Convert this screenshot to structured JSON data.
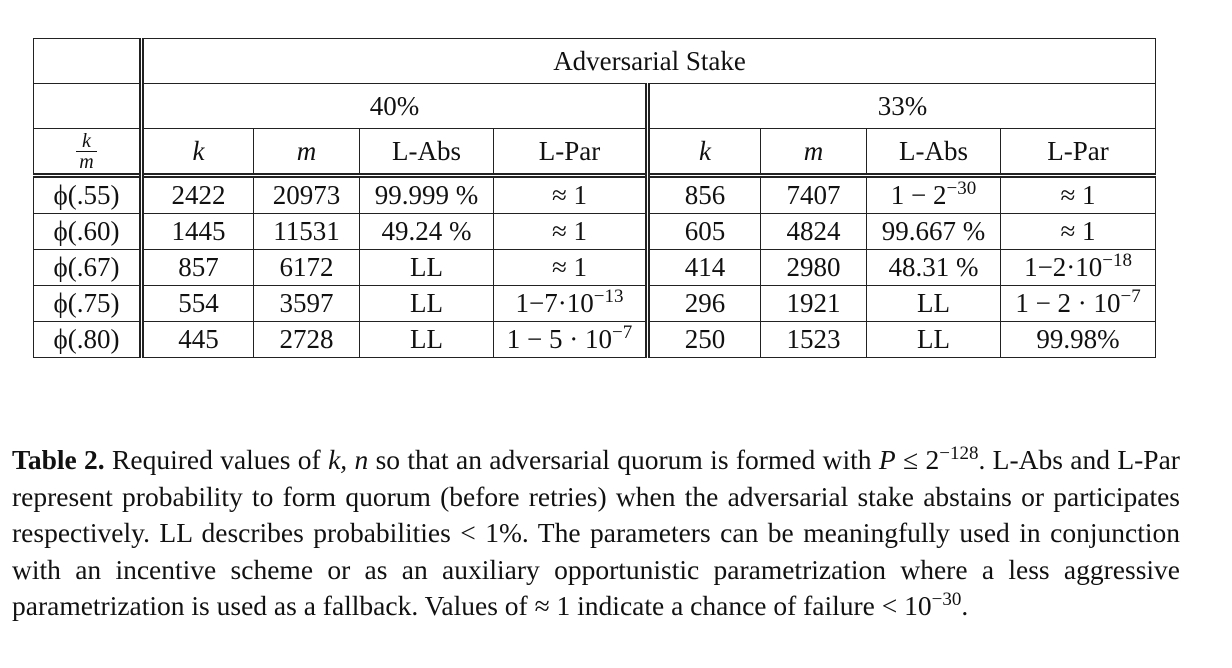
{
  "table": {
    "super_header": "Adversarial Stake",
    "groups": [
      "40%",
      "33%"
    ],
    "corner": {
      "numerator": "k",
      "denominator": "m"
    },
    "columns": [
      "k",
      "m",
      "L-Abs",
      "L-Par",
      "k",
      "m",
      "L-Abs",
      "L-Par"
    ],
    "rows": [
      {
        "label": "ϕ(.55)",
        "cells": [
          "2422",
          "20973",
          "99.999 %",
          "≈ 1",
          "856",
          "7407",
          "1 − 2",
          "≈ 1"
        ],
        "sup": {
          "6": "−30"
        }
      },
      {
        "label": "ϕ(.60)",
        "cells": [
          "1445",
          "11531",
          "49.24 %",
          "≈ 1",
          "605",
          "4824",
          "99.667 %",
          "≈ 1"
        ],
        "sup": {}
      },
      {
        "label": "ϕ(.67)",
        "cells": [
          "857",
          "6172",
          "LL",
          "≈ 1",
          "414",
          "2980",
          "48.31 %",
          "1−2·10"
        ],
        "sup": {
          "7": "−18"
        }
      },
      {
        "label": "ϕ(.75)",
        "cells": [
          "554",
          "3597",
          "LL",
          "1−7·10",
          "296",
          "1921",
          "LL",
          "1 − 2 · 10"
        ],
        "sup": {
          "3": "−13",
          "7": "−7"
        }
      },
      {
        "label": "ϕ(.80)",
        "cells": [
          "445",
          "2728",
          "LL",
          "1 − 5 · 10",
          "250",
          "1523",
          "LL",
          "99.98%"
        ],
        "sup": {
          "3": "−7"
        }
      }
    ]
  },
  "caption": {
    "label": "Table 2.",
    "p1": " Required values of ",
    "kn": "k, n",
    "p2": " so that an adversarial quorum is formed with ",
    "P": "P",
    "p3": " ≤ 2",
    "exp1": "−128",
    "p4": ". L-Abs and L-Par represent probability to form quorum (before retries) when the adversarial stake abstains or participates respectively. LL describes probabilities < 1%. The parameters can be meaningfully used in conjunction with an incentive scheme or as an auxiliary opportunistic parametrization where a less aggressive parametrization is used as a fallback. Values of ≈ 1 indicate a chance of failure < 10",
    "exp2": "−30",
    "p5": "."
  }
}
